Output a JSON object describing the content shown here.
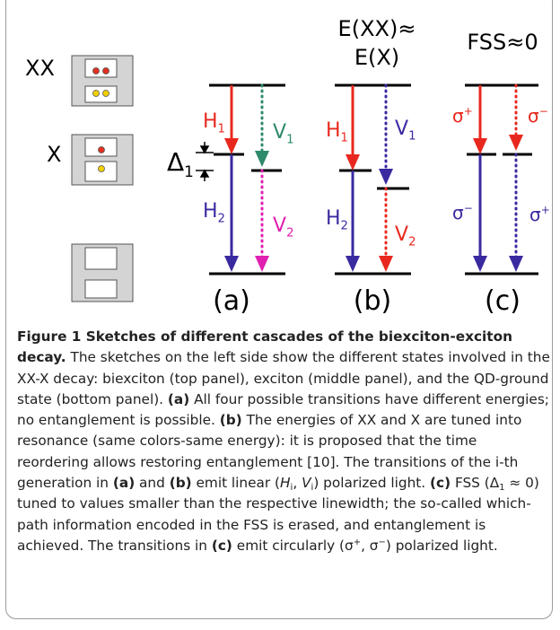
{
  "states": [
    {
      "label": "XX"
    },
    {
      "label": "X"
    }
  ],
  "delta": {
    "base": "Δ",
    "sub": "1"
  },
  "panels": [
    {
      "label": "(a)",
      "transitions": [
        {
          "base": "H",
          "sub": "1"
        },
        {
          "base": "V",
          "sub": "1"
        },
        {
          "base": "H",
          "sub": "2"
        },
        {
          "base": "V",
          "sub": "2"
        }
      ]
    },
    {
      "label": "(b)",
      "title": [
        "E(XX)≈",
        "E(X)"
      ],
      "transitions": [
        {
          "base": "H",
          "sub": "1"
        },
        {
          "base": "V",
          "sub": "1"
        },
        {
          "base": "H",
          "sub": "2"
        },
        {
          "base": "V",
          "sub": "2"
        }
      ]
    },
    {
      "label": "(c)",
      "title": [
        "FSS≈0"
      ],
      "transitions": [
        {
          "base": "σ",
          "sup": "+"
        },
        {
          "base": "σ",
          "sup": "−"
        },
        {
          "base": "σ",
          "sup": "−"
        },
        {
          "base": "σ",
          "sup": "+"
        }
      ]
    }
  ],
  "caption": [
    {
      "text": "Figure 1 Sketches of different cascades of the biexciton-exciton decay.",
      "style": "b"
    },
    {
      "text": " The sketches on the left side show the different states involved in the XX-X decay: biexciton (top panel), exciton (middle panel), and the QD-ground state (bottom panel). "
    },
    {
      "text": "(a)",
      "style": "b"
    },
    {
      "text": " All four possible transitions have different energies; no entanglement is possible. "
    },
    {
      "text": "(b)",
      "style": "b"
    },
    {
      "text": " The energies of XX and X are tuned into resonance (same colors-same energy): it is proposed that the time reordering allows restoring entanglement [10]. The transitions of the i-th generation in "
    },
    {
      "text": "(a)",
      "style": "b"
    },
    {
      "text": " and "
    },
    {
      "text": "(b)",
      "style": "b"
    },
    {
      "text": " emit linear ("
    },
    {
      "text": "H",
      "style": "i"
    },
    {
      "text": "i",
      "style": "sub"
    },
    {
      "text": ", "
    },
    {
      "text": "V",
      "style": "i"
    },
    {
      "text": "i",
      "style": "sub"
    },
    {
      "text": ") polarized light. "
    },
    {
      "text": "(c)",
      "style": "b"
    },
    {
      "text": " FSS (Δ"
    },
    {
      "text": "1",
      "style": "sub"
    },
    {
      "text": " ≈ 0) tuned to values smaller than the respective linewidth; the so-called which-path information encoded in the FSS is erased, and entanglement is achieved. The transitions in "
    },
    {
      "text": "(c)",
      "style": "b"
    },
    {
      "text": " emit circularly (σ"
    },
    {
      "text": "+",
      "style": "sup"
    },
    {
      "text": ", σ"
    },
    {
      "text": "−",
      "style": "sup"
    },
    {
      "text": ") polarized light."
    }
  ]
}
